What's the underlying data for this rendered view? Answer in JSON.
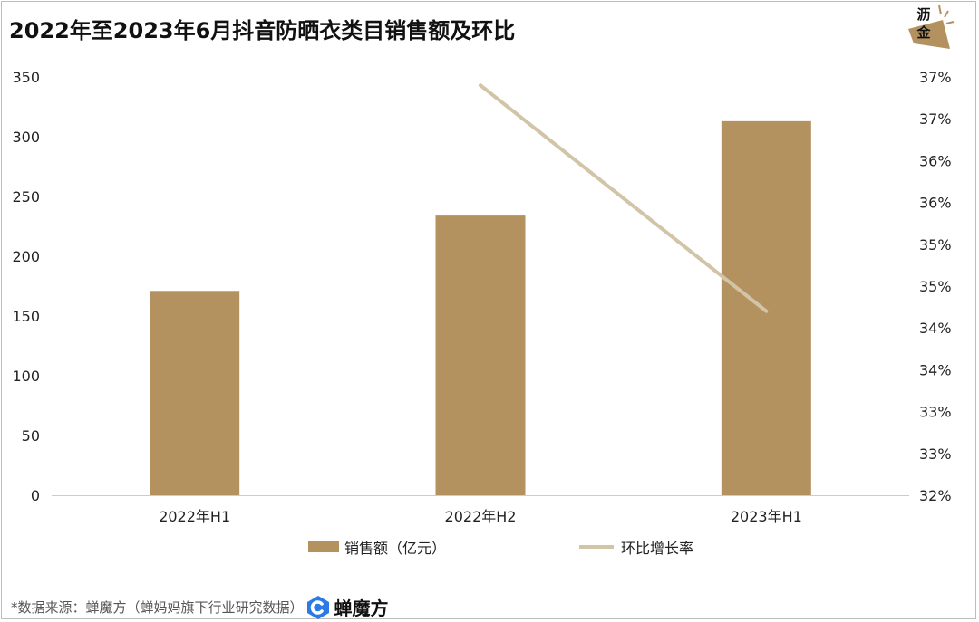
{
  "title": "2022年至2023年6月抖音防晒衣类目销售额及环比",
  "logo": {
    "text": "沥金",
    "icon": "lijin-logo-icon"
  },
  "source": {
    "prefix": "*数据来源：蝉魔方（蝉妈妈旗下行业研究数据）",
    "brand_icon": "chanmofang-logo-icon",
    "brand_name": "蝉魔方"
  },
  "colors": {
    "bar": "#B39260",
    "line": "#D2C4A6",
    "axis": "#cccccc"
  },
  "chart_data": {
    "type": "bar",
    "categories": [
      "2022年H1",
      "2022年H2",
      "2023年H1"
    ],
    "series": [
      {
        "name": "销售额（亿元）",
        "type": "bar",
        "axis": "left",
        "values": [
          171,
          234,
          313
        ]
      },
      {
        "name": "环比增长率",
        "type": "line",
        "axis": "right",
        "values": [
          null,
          36.9,
          34.2
        ]
      }
    ],
    "ylim_left": [
      0,
      350
    ],
    "yticks_left": [
      "0",
      "50",
      "100",
      "150",
      "200",
      "250",
      "300",
      "350"
    ],
    "ylim_right": [
      32,
      37
    ],
    "yticks_right": [
      "32%",
      "33%",
      "33%",
      "34%",
      "34%",
      "35%",
      "35%",
      "36%",
      "36%",
      "37%",
      "37%"
    ],
    "legend_position": "bottom",
    "grid": false
  }
}
